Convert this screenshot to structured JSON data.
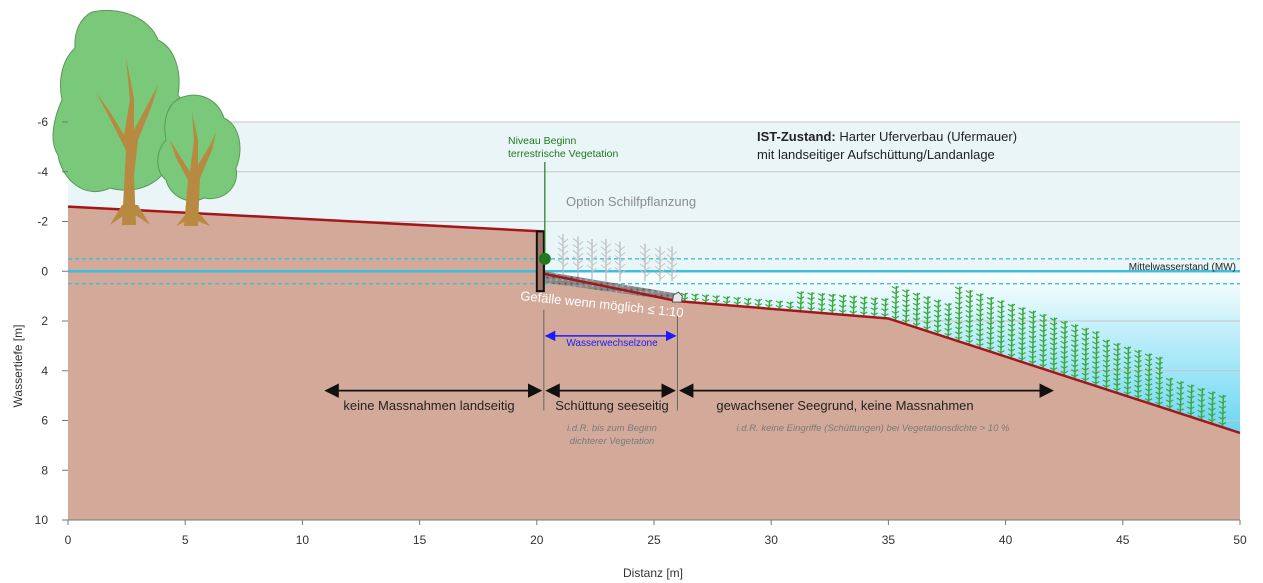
{
  "info": {
    "title_bold": "IST-Zustand:",
    "title_rest": " Harter Uferverbau (Ufermauer)",
    "subtitle": "mit landseitiger Aufschüttung/Landanlage"
  },
  "labels": {
    "veg_line1": "Niveau Beginn",
    "veg_line2": "terrestrische Vegetation",
    "reed_option": "Option Schilfpflanzung",
    "mw": "Mittelwasserstand (MW)",
    "slope": "Gefälle wenn möglich ≤ 1:10",
    "wwz": "Wasserwechselzone",
    "zone_land": "keine Massnahmen landseitig",
    "zone_fill": "Schüttung seeseitig",
    "zone_lake": "gewachsener Seegrund, keine Massnahmen",
    "note_fill_1": "i.d.R. bis zum Beginn",
    "note_fill_2": "dichterer Vegetation",
    "note_lake": "i.d.R. keine Eingriffe (Schüttungen) bei Vegetationsdichte > 10 %"
  },
  "axes": {
    "xlabel": "Distanz [m]",
    "ylabel": "Wassertiefe [m]",
    "xticks": [
      0,
      5,
      10,
      15,
      20,
      25,
      30,
      35,
      40,
      45,
      50
    ],
    "yticks": [
      -6,
      -4,
      -2,
      0,
      2,
      4,
      6,
      8,
      10
    ],
    "xlim": [
      0,
      50
    ],
    "ylim": [
      -6,
      10
    ]
  },
  "chart_data": {
    "type": "area",
    "title": "",
    "xlabel": "Distanz [m]",
    "ylabel": "Wassertiefe [m]",
    "xlim": [
      0,
      50
    ],
    "ylim": [
      -6,
      10
    ],
    "y_inverted": true,
    "grid": true,
    "ground_profile": {
      "x": [
        0,
        20.3,
        20.3,
        26,
        35,
        50
      ],
      "y": [
        -2.6,
        -1.6,
        0.1,
        1.2,
        1.9,
        6.5
      ]
    },
    "fill_slope": {
      "x": [
        20.3,
        26
      ],
      "y": [
        0.1,
        1.2
      ]
    },
    "wall": {
      "x": 20.3,
      "y_top": -1.6,
      "y_bottom": 0.8
    },
    "mean_water_level": 0,
    "water_level_band": [
      -0.5,
      0.5
    ],
    "veg_start": {
      "x": 20.3,
      "y": -0.5
    },
    "wwz_range": [
      20.3,
      26
    ],
    "zones": [
      {
        "from": 11,
        "to": 20.3
      },
      {
        "from": 20.3,
        "to": 26
      },
      {
        "from": 26,
        "to": 42
      }
    ]
  },
  "colors": {
    "sky": "#eaf5f8",
    "ground": "#d3aa99",
    "ground_line": "#a3171c",
    "water_line": "#3bbfe0",
    "water_deep": "#2bc6ee",
    "grid": "#c6c6c6",
    "veg_green": "#1d7a1d",
    "wwz_blue": "#1a1aff",
    "plants": "#3da83d",
    "tree_crown": "#7ac879",
    "tree_trunk": "#b88940"
  }
}
